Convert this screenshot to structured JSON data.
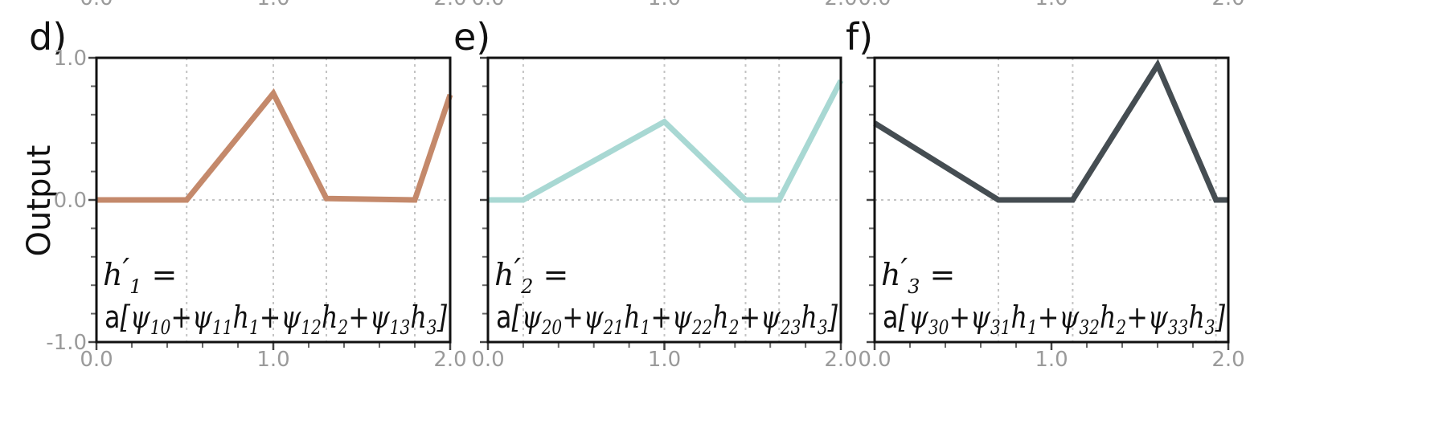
{
  "figure": {
    "ylabel": "Output",
    "top_strip_ticks": [
      "0.0",
      "1.0",
      "2.0",
      "0.0",
      "1.0",
      "2.0",
      "0.0",
      "1.0",
      "2.0"
    ]
  },
  "chart_data": [
    {
      "type": "line",
      "panel_label": "d)",
      "equation_line1": "h′₁ =",
      "equation_line2": "a[ψ₁₀+ψ₁₁h₁+ψ₁₂h₂+ψ₁₃h₃]",
      "xlim": [
        0,
        2
      ],
      "ylim": [
        -1,
        1
      ],
      "xticks": [
        "0.0",
        "1.0",
        "2.0"
      ],
      "yticks": [
        "1.0",
        "0.0",
        "-1.0"
      ],
      "grid": true,
      "vlines": [
        0.51,
        1.0,
        1.3,
        1.8
      ],
      "color": "#c4896b",
      "x": [
        0.0,
        0.51,
        1.0,
        1.3,
        1.8,
        2.0
      ],
      "y": [
        0.0,
        0.0,
        0.75,
        0.01,
        0.0,
        0.74
      ]
    },
    {
      "type": "line",
      "panel_label": "e)",
      "equation_line1": "h′₂ =",
      "equation_line2": "a[ψ₂₀+ψ₂₁h₁+ψ₂₂h₂+ψ₂₃h₃]",
      "xlim": [
        0,
        2
      ],
      "ylim": [
        -1,
        1
      ],
      "xticks": [
        "0.0",
        "1.0",
        "2.0"
      ],
      "yticks": [],
      "grid": true,
      "vlines": [
        0.2,
        1.0,
        1.46,
        1.65
      ],
      "color": "#a8d8d3",
      "x": [
        0.0,
        0.2,
        1.0,
        1.46,
        1.65,
        2.0
      ],
      "y": [
        0.0,
        0.0,
        0.55,
        0.0,
        0.0,
        0.84
      ]
    },
    {
      "type": "line",
      "panel_label": "f)",
      "equation_line1": "h′₃ =",
      "equation_line2": "a[ψ₃₀+ψ₃₁h₁+ψ₃₂h₂+ψ₃₃h₃]",
      "xlim": [
        0,
        2
      ],
      "ylim": [
        -1,
        1
      ],
      "xticks": [
        "0.0",
        "1.0",
        "2.0"
      ],
      "yticks": [],
      "grid": true,
      "vlines": [
        0.7,
        1.12,
        1.93
      ],
      "color": "#454d52",
      "x": [
        0.0,
        0.7,
        1.12,
        1.6,
        1.93,
        2.0
      ],
      "y": [
        0.54,
        0.0,
        0.0,
        0.95,
        0.0,
        0.0
      ]
    }
  ]
}
